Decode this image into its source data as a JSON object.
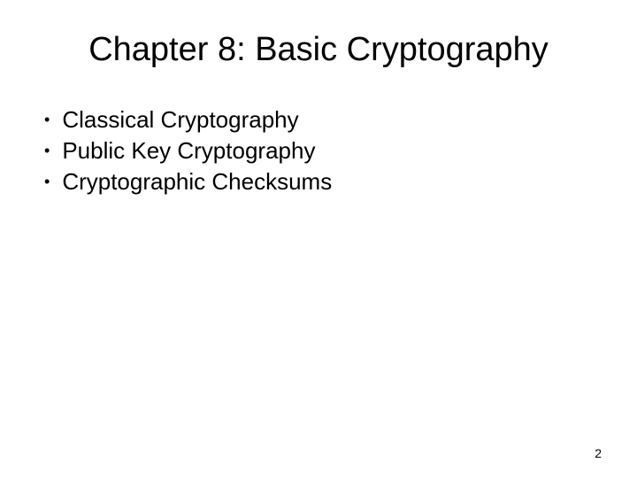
{
  "slide": {
    "title": "Chapter 8: Basic Cryptography",
    "bullets": [
      "Classical Cryptography",
      "Public Key Cryptography",
      "Cryptographic Checksums"
    ],
    "page_number": "2",
    "styling": {
      "background_color": "#ffffff",
      "text_color": "#000000",
      "title_fontsize": 38,
      "bullet_fontsize": 26,
      "page_number_fontsize": 14,
      "font_family": "Arial"
    }
  }
}
